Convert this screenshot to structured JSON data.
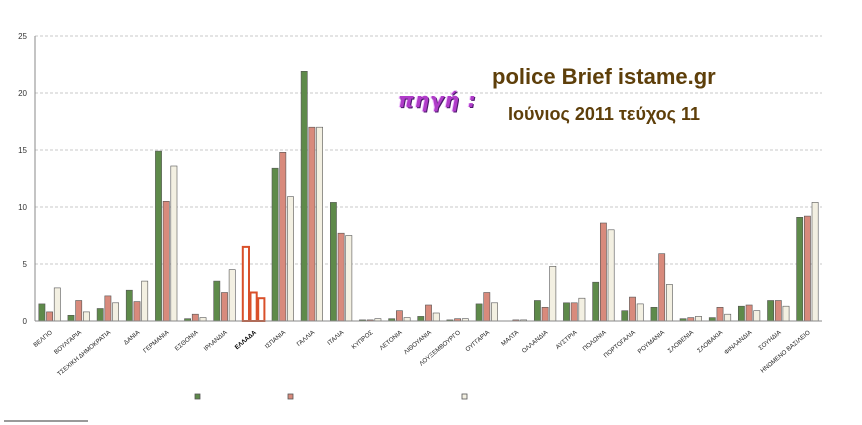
{
  "annotation": {
    "source_label": "πηγή :",
    "source_name": "police Brief istame.gr",
    "issue": "Ιούνιος 2011 τεύχος 11"
  },
  "chart_data": {
    "type": "bar",
    "ylim": [
      0,
      25
    ],
    "yticks": [
      0,
      5,
      10,
      15,
      20,
      25
    ],
    "grid": true,
    "highlight_category": "ΕΛΛΑΔΑ",
    "categories": [
      "ΒΕΛΓΙΟ",
      "ΒΟΥΛΓΑΡΙΑ",
      "ΤΣΕΧΙΚΗ ΔΗΜΟΚΡΑΤΙΑ",
      "ΔΑΝΙΑ",
      "ΓΕΡΜΑΝΙΑ",
      "ΕΣΘΟΝΙΑ",
      "ΙΡΛΑΝΔΙΑ",
      "ΕΛΛΑΔΑ",
      "ΙΣΠΑΝΙΑ",
      "ΓΑΛΛΙΑ",
      "ΙΤΑΛΙΑ",
      "ΚΥΠΡΟΣ",
      "ΛΕΤΟΝΙΑ",
      "ΛΙΘΟΥΑΝΙΑ",
      "ΛΟΥΞΕΜΒΟΥΡΓΟ",
      "ΟΥΓΓΑΡΙΑ",
      "ΜΑΛΤΑ",
      "ΟΛΛΑΝΔΙΑ",
      "ΑΥΣΤΡΙΑ",
      "ΠΟΛΩΝΙΑ",
      "ΠΟΡΤΟΓΑΛΙΑ",
      "ΡΟΥΜΑΝΙΑ",
      "ΣΛΟΒΕΝΙΑ",
      "ΣΛΟΒΑΚΙΑ",
      "ΦΙΝΛΑΝΔΙΑ",
      "ΣΟΥΗΔΙΑ",
      "ΗΝΩΜΕΝΟ ΒΑΣΙΛΕΙΟ"
    ],
    "series": [
      {
        "color": "#5e8a4a",
        "values": [
          1.5,
          0.5,
          1.1,
          2.7,
          14.9,
          0.2,
          3.5,
          6.5,
          13.4,
          21.9,
          10.4,
          0.1,
          0.2,
          0.4,
          0.1,
          1.5,
          0.0,
          1.8,
          1.6,
          3.4,
          0.9,
          1.2,
          0.2,
          0.3,
          1.3,
          1.8,
          9.1
        ]
      },
      {
        "color": "#d88a7c",
        "values": [
          0.8,
          1.8,
          2.2,
          1.7,
          10.5,
          0.6,
          2.5,
          2.5,
          14.8,
          17.0,
          7.7,
          0.1,
          0.9,
          1.4,
          0.2,
          2.5,
          0.1,
          1.2,
          1.6,
          8.6,
          2.1,
          5.9,
          0.3,
          1.2,
          1.4,
          1.8,
          9.2
        ]
      },
      {
        "color": "#f3f0e2",
        "values": [
          2.9,
          0.8,
          1.6,
          3.5,
          13.6,
          0.3,
          4.5,
          2.0,
          10.9,
          17.0,
          7.5,
          0.2,
          0.3,
          0.7,
          0.2,
          1.6,
          0.1,
          4.8,
          2.0,
          8.0,
          1.5,
          3.2,
          0.4,
          0.6,
          0.9,
          1.3,
          10.4
        ]
      }
    ]
  }
}
